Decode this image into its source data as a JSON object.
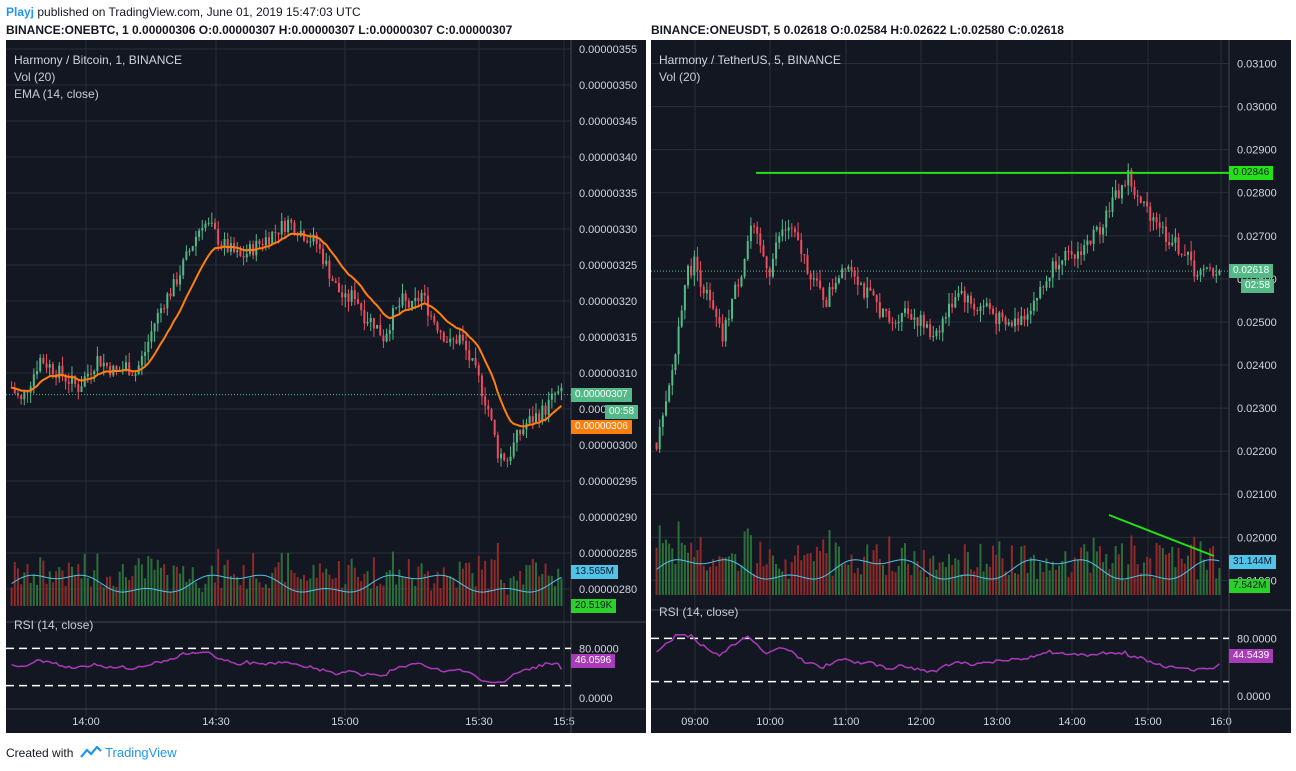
{
  "header": {
    "author": "Playj",
    "published": "published on TradingView.com, June 01, 2019 15:47:03 UTC"
  },
  "footer": {
    "created_with": "Created with",
    "brand": "TradingView"
  },
  "charts": [
    {
      "symbol_line": "BINANCE:ONEBTC, 1  0.00000306 O:0.00000307 H:0.00000307 L:0.00000307 C:0.00000307",
      "title": "Harmony / Bitcoin, 1, BINANCE",
      "vol_label": "Vol (20)",
      "ema_label": "EMA (14, close)",
      "rsi_label": "RSI (14, close)",
      "price_ticks": [
        "0.00000355",
        "0.00000350",
        "0.00000345",
        "0.00000340",
        "0.00000335",
        "0.00000330",
        "0.00000325",
        "0.00000320",
        "0.00000315",
        "0.00000310",
        "0.00000305",
        "0.00000300",
        "0.00000295",
        "0.00000290",
        "0.00000285",
        "0.00000280"
      ],
      "price_tick_values": [
        3.55,
        3.5,
        3.45,
        3.4,
        3.35,
        3.3,
        3.25,
        3.2,
        3.15,
        3.1,
        3.05,
        3.0,
        2.95,
        2.9,
        2.85,
        2.8
      ],
      "time_ticks": [
        "14:00",
        "14:30",
        "15:00",
        "15:30",
        "15:5"
      ],
      "rsi_ticks": [
        "80.0000",
        "0.0000"
      ],
      "tags": {
        "last_price": "0.00000307",
        "countdown": "00:58",
        "ema": "0.00000306",
        "vol_ma": "13.565M",
        "vol": "20.519K",
        "rsi": "46.0596",
        "hidden_price": "0.000"
      }
    },
    {
      "symbol_line": "BINANCE:ONEUSDT, 5  0.02618 O:0.02584 H:0.02622 L:0.02580 C:0.02618",
      "title": "Harmony / TetherUS, 5, BINANCE",
      "vol_label": "Vol (20)",
      "rsi_label": "RSI (14, close)",
      "price_ticks": [
        "0.03100",
        "0.03000",
        "0.02900",
        "0.02800",
        "0.02700",
        "0.02600",
        "0.02500",
        "0.02400",
        "0.02300",
        "0.02200",
        "0.02100",
        "0.02000",
        "0.01900"
      ],
      "price_tick_values": [
        3.1,
        3.0,
        2.9,
        2.8,
        2.7,
        2.6,
        2.5,
        2.4,
        2.3,
        2.2,
        2.1,
        2.0,
        1.9
      ],
      "time_ticks": [
        "09:00",
        "10:00",
        "11:00",
        "12:00",
        "13:00",
        "14:00",
        "15:00",
        "16:0"
      ],
      "rsi_ticks": [
        "80.0000",
        "0.0000"
      ],
      "tags": {
        "resistance": "0.02846",
        "last_price": "0.02618",
        "countdown": "02:58",
        "vol_ma": "31.144M",
        "vol": "7.542M",
        "rsi": "44.5439"
      }
    }
  ],
  "chart_data": [
    {
      "type": "candlestick",
      "title": "Harmony / Bitcoin, 1, BINANCE",
      "y_unit": "BTC (x1e-6)",
      "ylim": [
        2.8,
        3.56
      ],
      "x_range": [
        "13:45",
        "15:57"
      ],
      "close_path": [
        3.08,
        3.06,
        3.09,
        3.12,
        3.11,
        3.1,
        3.09,
        3.08,
        3.1,
        3.12,
        3.11,
        3.1,
        3.11,
        3.1,
        3.13,
        3.17,
        3.2,
        3.22,
        3.25,
        3.28,
        3.31,
        3.3,
        3.28,
        3.27,
        3.26,
        3.27,
        3.28,
        3.29,
        3.3,
        3.31,
        3.3,
        3.29,
        3.28,
        3.25,
        3.22,
        3.2,
        3.21,
        3.18,
        3.17,
        3.15,
        3.18,
        3.2,
        3.19,
        3.21,
        3.18,
        3.16,
        3.14,
        3.15,
        3.12,
        3.09,
        3.05,
        2.99,
        2.98,
        3.01,
        3.03,
        3.04,
        3.05,
        3.07
      ],
      "ema_last": 3.06,
      "last": 3.07,
      "rsi_last": 46.0596,
      "vol_ma_last": "13.565M"
    },
    {
      "type": "candlestick",
      "title": "Harmony / TetherUS, 5, BINANCE",
      "y_unit": "USDT (x1e-2)",
      "ylim": [
        1.88,
        3.15
      ],
      "x_range": [
        "08:25",
        "16:05"
      ],
      "close_path": [
        2.22,
        2.3,
        2.43,
        2.6,
        2.64,
        2.58,
        2.52,
        2.46,
        2.55,
        2.62,
        2.72,
        2.67,
        2.62,
        2.7,
        2.72,
        2.68,
        2.63,
        2.58,
        2.55,
        2.6,
        2.64,
        2.62,
        2.57,
        2.55,
        2.52,
        2.49,
        2.53,
        2.52,
        2.5,
        2.47,
        2.49,
        2.53,
        2.58,
        2.55,
        2.53,
        2.54,
        2.51,
        2.49,
        2.5,
        2.52,
        2.55,
        2.58,
        2.63,
        2.66,
        2.64,
        2.67,
        2.69,
        2.72,
        2.77,
        2.8,
        2.84,
        2.78,
        2.76,
        2.74,
        2.7,
        2.68,
        2.66,
        2.62,
        2.61,
        2.62
      ],
      "resistance": 2.846,
      "last": 2.618,
      "rsi_last": 44.5439,
      "vol_ma_last": "31.144M"
    }
  ],
  "colors": {
    "bg": "#131722",
    "grid": "#2a2e39",
    "up": "#53b987",
    "down": "#eb4d5c",
    "ema": "#ff7f0e",
    "vol_ma": "#4fc3e8",
    "rsi": "#a93ab8",
    "trend": "#24e016"
  }
}
